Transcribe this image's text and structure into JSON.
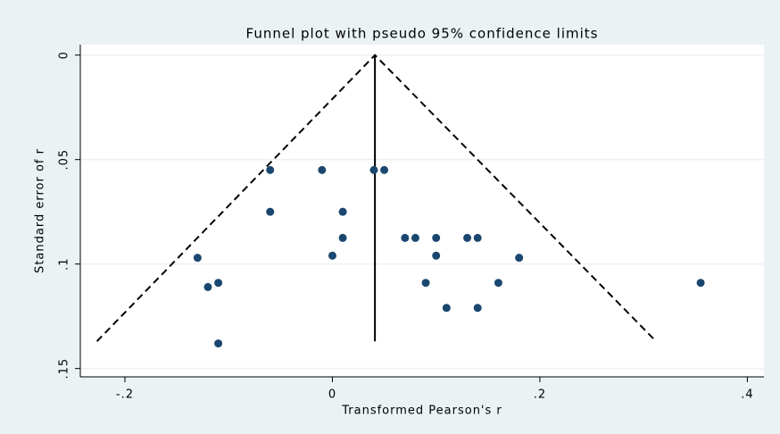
{
  "chart_data": {
    "type": "scatter",
    "title": "Funnel plot with pseudo 95% confidence limits",
    "xlabel": "Transformed Pearson's r",
    "ylabel": "Standard error of r",
    "x": [
      -0.06,
      -0.01,
      0.04,
      0.05,
      -0.06,
      0.01,
      0.01,
      0.07,
      0.08,
      0.1,
      0.13,
      0.14,
      0.0,
      0.1,
      -0.13,
      0.18,
      -0.12,
      -0.11,
      0.09,
      0.16,
      0.355,
      0.11,
      0.14,
      -0.11
    ],
    "y": [
      0.055,
      0.055,
      0.055,
      0.055,
      0.075,
      0.075,
      0.0875,
      0.0875,
      0.0875,
      0.0875,
      0.0875,
      0.0875,
      0.096,
      0.096,
      0.097,
      0.097,
      0.111,
      0.109,
      0.109,
      0.109,
      0.109,
      0.121,
      0.121,
      0.138
    ],
    "color": "#1a476f",
    "lines": [
      {
        "x": [
          -0.227,
          0.041,
          0.312
        ],
        "y": [
          0.137,
          0,
          0.137
        ],
        "color": "#000000",
        "dashed": true
      },
      {
        "x": [
          0.041,
          0.041
        ],
        "y": [
          0,
          0.137
        ],
        "color": "#000000",
        "dashed": false
      }
    ],
    "xlim": [
      -0.243,
      0.416
    ],
    "ylim": [
      -0.005,
      0.154
    ],
    "y_reversed": true,
    "xticks": [
      {
        "value": -0.2,
        "label": "-.2"
      },
      0,
      {
        "value": 0.2,
        "label": ".2"
      },
      {
        "value": 0.4,
        "label": ".4"
      }
    ],
    "yticks": [
      0,
      {
        "value": 0.05,
        "label": ".05"
      },
      {
        "value": 0.1,
        "label": ".1"
      },
      {
        "value": 0.15,
        "label": ".15"
      }
    ],
    "grid": true
  }
}
